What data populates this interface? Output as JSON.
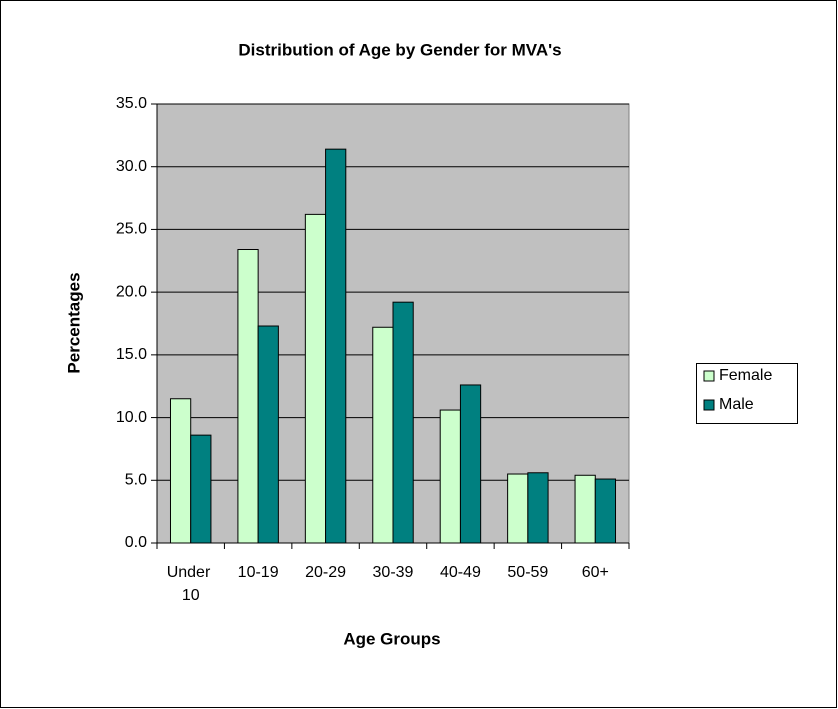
{
  "chart_data": {
    "type": "bar",
    "title": "Distribution of Age by Gender for MVA's",
    "x_label": "Age Groups",
    "y_label": "Percentages",
    "categories": [
      "Under 10",
      "10-19",
      "20-29",
      "30-39",
      "40-49",
      "50-59",
      "60+"
    ],
    "series": [
      {
        "name": "Female",
        "color": "#ccffcc",
        "values": [
          11.5,
          23.4,
          26.2,
          17.2,
          10.6,
          5.5,
          5.4
        ]
      },
      {
        "name": "Male",
        "color": "#008080",
        "values": [
          8.6,
          17.3,
          31.4,
          19.2,
          12.6,
          5.6,
          5.1
        ]
      }
    ],
    "ylim": [
      0,
      35
    ],
    "yticks": [
      {
        "value": 0,
        "label": "0.0"
      },
      {
        "value": 5,
        "label": "5.0"
      },
      {
        "value": 10,
        "label": "10.0"
      },
      {
        "value": 15,
        "label": "15.0"
      },
      {
        "value": 20,
        "label": "20.0"
      },
      {
        "value": 25,
        "label": "25.0"
      },
      {
        "value": 30,
        "label": "30.0"
      },
      {
        "value": 35,
        "label": "35.0"
      }
    ],
    "grid": true,
    "legend": "right"
  }
}
